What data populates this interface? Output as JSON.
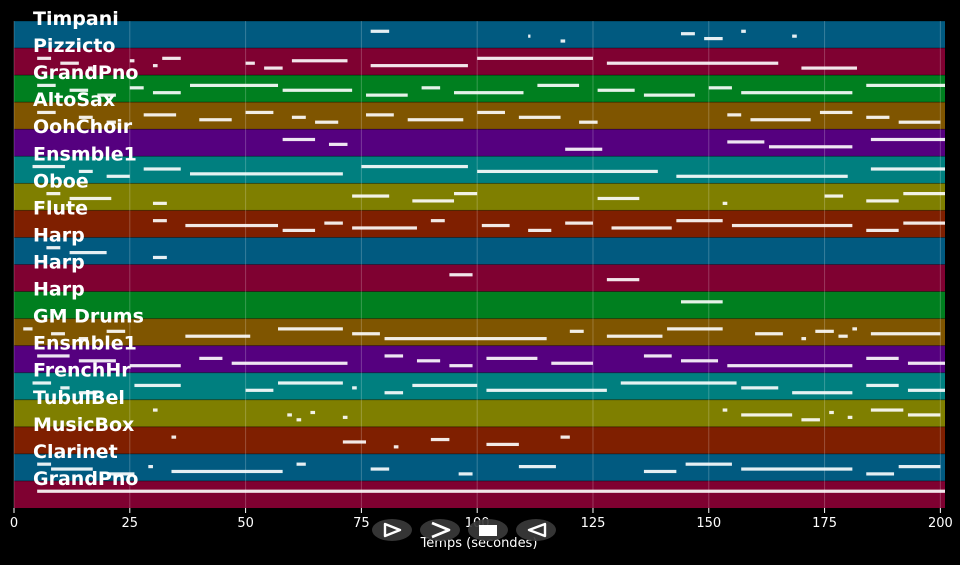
{
  "chart_data": {
    "type": "piano-roll",
    "xlabel": "Temps (secondes)",
    "xlim": [
      0,
      201
    ],
    "xticks": [
      0,
      25,
      50,
      75,
      100,
      125,
      150,
      175,
      200
    ],
    "grid": true,
    "tracks": [
      {
        "name": "Timpani",
        "color": "#015a80",
        "notes": [
          [
            77,
            81
          ],
          [
            111,
            111.5
          ],
          [
            118,
            119
          ],
          [
            144,
            147
          ],
          [
            149,
            153
          ],
          [
            157,
            158
          ],
          [
            168,
            169
          ]
        ]
      },
      {
        "name": "Pizzicto",
        "color": "#7f0131",
        "notes": [
          [
            5,
            8
          ],
          [
            10,
            14
          ],
          [
            16,
            17
          ],
          [
            25,
            26
          ],
          [
            30,
            31
          ],
          [
            32,
            36
          ],
          [
            50,
            52
          ],
          [
            54,
            58
          ],
          [
            60,
            72
          ],
          [
            77,
            98
          ],
          [
            100,
            125
          ],
          [
            128,
            165
          ],
          [
            170,
            182
          ]
        ]
      },
      {
        "name": "GrandPno",
        "color": "#007f1f",
        "notes": [
          [
            5,
            9
          ],
          [
            12,
            16
          ],
          [
            18,
            22
          ],
          [
            25,
            28
          ],
          [
            30,
            36
          ],
          [
            38,
            57
          ],
          [
            58,
            73
          ],
          [
            76,
            85
          ],
          [
            88,
            92
          ],
          [
            95,
            110
          ],
          [
            113,
            122
          ],
          [
            126,
            134
          ],
          [
            136,
            147
          ],
          [
            150,
            155
          ],
          [
            157,
            181
          ],
          [
            184,
            201
          ]
        ]
      },
      {
        "name": "AltoSax",
        "color": "#7f5500",
        "notes": [
          [
            5,
            9
          ],
          [
            14,
            17
          ],
          [
            20,
            22
          ],
          [
            28,
            35
          ],
          [
            40,
            47
          ],
          [
            50,
            56
          ],
          [
            60,
            63
          ],
          [
            65,
            70
          ],
          [
            76,
            82
          ],
          [
            85,
            97
          ],
          [
            100,
            106
          ],
          [
            109,
            118
          ],
          [
            122,
            126
          ],
          [
            154,
            157
          ],
          [
            159,
            172
          ],
          [
            174,
            181
          ],
          [
            184,
            189
          ],
          [
            191,
            200
          ]
        ]
      },
      {
        "name": "OohChoir",
        "color": "#55007f",
        "notes": [
          [
            58,
            65
          ],
          [
            68,
            72
          ],
          [
            119,
            127
          ],
          [
            154,
            162
          ],
          [
            163,
            181
          ],
          [
            185,
            201
          ]
        ]
      },
      {
        "name": "Ensmble1",
        "color": "#007f7f",
        "notes": [
          [
            4,
            11
          ],
          [
            14,
            17
          ],
          [
            20,
            25
          ],
          [
            28,
            36
          ],
          [
            38,
            71
          ],
          [
            75,
            98
          ],
          [
            100,
            139
          ],
          [
            143,
            180
          ],
          [
            185,
            201
          ]
        ]
      },
      {
        "name": "Oboe",
        "color": "#7f7f00",
        "notes": [
          [
            7,
            10
          ],
          [
            12,
            21
          ],
          [
            30,
            33
          ],
          [
            73,
            81
          ],
          [
            86,
            95
          ],
          [
            95,
            100
          ],
          [
            126,
            135
          ],
          [
            153,
            154
          ],
          [
            175,
            179
          ],
          [
            184,
            191
          ],
          [
            192,
            201
          ]
        ]
      },
      {
        "name": "Flute",
        "color": "#7f1f00",
        "notes": [
          [
            30,
            33
          ],
          [
            37,
            57
          ],
          [
            58,
            65
          ],
          [
            67,
            71
          ],
          [
            73,
            87
          ],
          [
            90,
            93
          ],
          [
            101,
            107
          ],
          [
            111,
            116
          ],
          [
            119,
            125
          ],
          [
            129,
            142
          ],
          [
            143,
            153
          ],
          [
            155,
            181
          ],
          [
            184,
            191
          ],
          [
            192,
            201
          ]
        ]
      },
      {
        "name": "Harp",
        "color": "#015a80",
        "notes": [
          [
            7,
            10
          ],
          [
            12,
            20
          ],
          [
            30,
            33
          ]
        ]
      },
      {
        "name": "Harp",
        "color": "#7f0131",
        "notes": [
          [
            94,
            99
          ],
          [
            128,
            135
          ]
        ]
      },
      {
        "name": "Harp",
        "color": "#007f1f",
        "notes": [
          [
            144,
            153
          ]
        ]
      },
      {
        "name": "GM Drums",
        "color": "#7f5500",
        "notes": [
          [
            2,
            4
          ],
          [
            8,
            11
          ],
          [
            14,
            16
          ],
          [
            20,
            24
          ],
          [
            37,
            51
          ],
          [
            57,
            71
          ],
          [
            73,
            79
          ],
          [
            80,
            115
          ],
          [
            120,
            123
          ],
          [
            128,
            140
          ],
          [
            141,
            153
          ],
          [
            160,
            166
          ],
          [
            170,
            171
          ],
          [
            173,
            177
          ],
          [
            178,
            180
          ],
          [
            181,
            182
          ],
          [
            185,
            200
          ]
        ]
      },
      {
        "name": "Ensmble1",
        "color": "#55007f",
        "notes": [
          [
            5,
            12
          ],
          [
            14,
            22
          ],
          [
            25,
            36
          ],
          [
            40,
            45
          ],
          [
            47,
            72
          ],
          [
            80,
            84
          ],
          [
            87,
            92
          ],
          [
            94,
            99
          ],
          [
            102,
            113
          ],
          [
            116,
            125
          ],
          [
            136,
            142
          ],
          [
            144,
            152
          ],
          [
            154,
            181
          ],
          [
            184,
            191
          ],
          [
            193,
            201
          ]
        ]
      },
      {
        "name": "FrenchHr",
        "color": "#007f7f",
        "notes": [
          [
            4,
            8
          ],
          [
            10,
            12
          ],
          [
            14,
            18
          ],
          [
            26,
            36
          ],
          [
            50,
            56
          ],
          [
            57,
            71
          ],
          [
            73,
            74
          ],
          [
            80,
            84
          ],
          [
            86,
            100
          ],
          [
            102,
            128
          ],
          [
            131,
            156
          ],
          [
            157,
            165
          ],
          [
            168,
            181
          ],
          [
            184,
            191
          ],
          [
            193,
            201
          ]
        ]
      },
      {
        "name": "TubulBel",
        "color": "#7f7f00",
        "notes": [
          [
            30,
            31
          ],
          [
            59,
            60
          ],
          [
            61,
            62
          ],
          [
            64,
            65
          ],
          [
            71,
            72
          ],
          [
            153,
            154
          ],
          [
            157,
            168
          ],
          [
            170,
            174
          ],
          [
            176,
            177
          ],
          [
            180,
            181
          ],
          [
            185,
            192
          ],
          [
            193,
            200
          ]
        ]
      },
      {
        "name": "MusicBox",
        "color": "#7f1f00",
        "notes": [
          [
            34,
            35
          ],
          [
            71,
            76
          ],
          [
            82,
            83
          ],
          [
            90,
            94
          ],
          [
            102,
            109
          ],
          [
            118,
            120
          ]
        ]
      },
      {
        "name": "Clarinet",
        "color": "#015a80",
        "notes": [
          [
            5,
            8
          ],
          [
            8,
            17
          ],
          [
            20,
            26
          ],
          [
            29,
            30
          ],
          [
            34,
            58
          ],
          [
            61,
            63
          ],
          [
            77,
            81
          ],
          [
            96,
            99
          ],
          [
            109,
            117
          ],
          [
            136,
            143
          ],
          [
            145,
            155
          ],
          [
            157,
            181
          ],
          [
            184,
            190
          ],
          [
            191,
            200
          ]
        ]
      },
      {
        "name": "GrandPno",
        "color": "#7f0131",
        "notes": [
          [
            5,
            201
          ]
        ]
      }
    ]
  },
  "controls": {
    "play_icon": "play-outline-icon",
    "forward_icon": "chevron-right-icon",
    "stop_icon": "stop-square-icon",
    "back_icon": "rewind-outline-icon"
  }
}
